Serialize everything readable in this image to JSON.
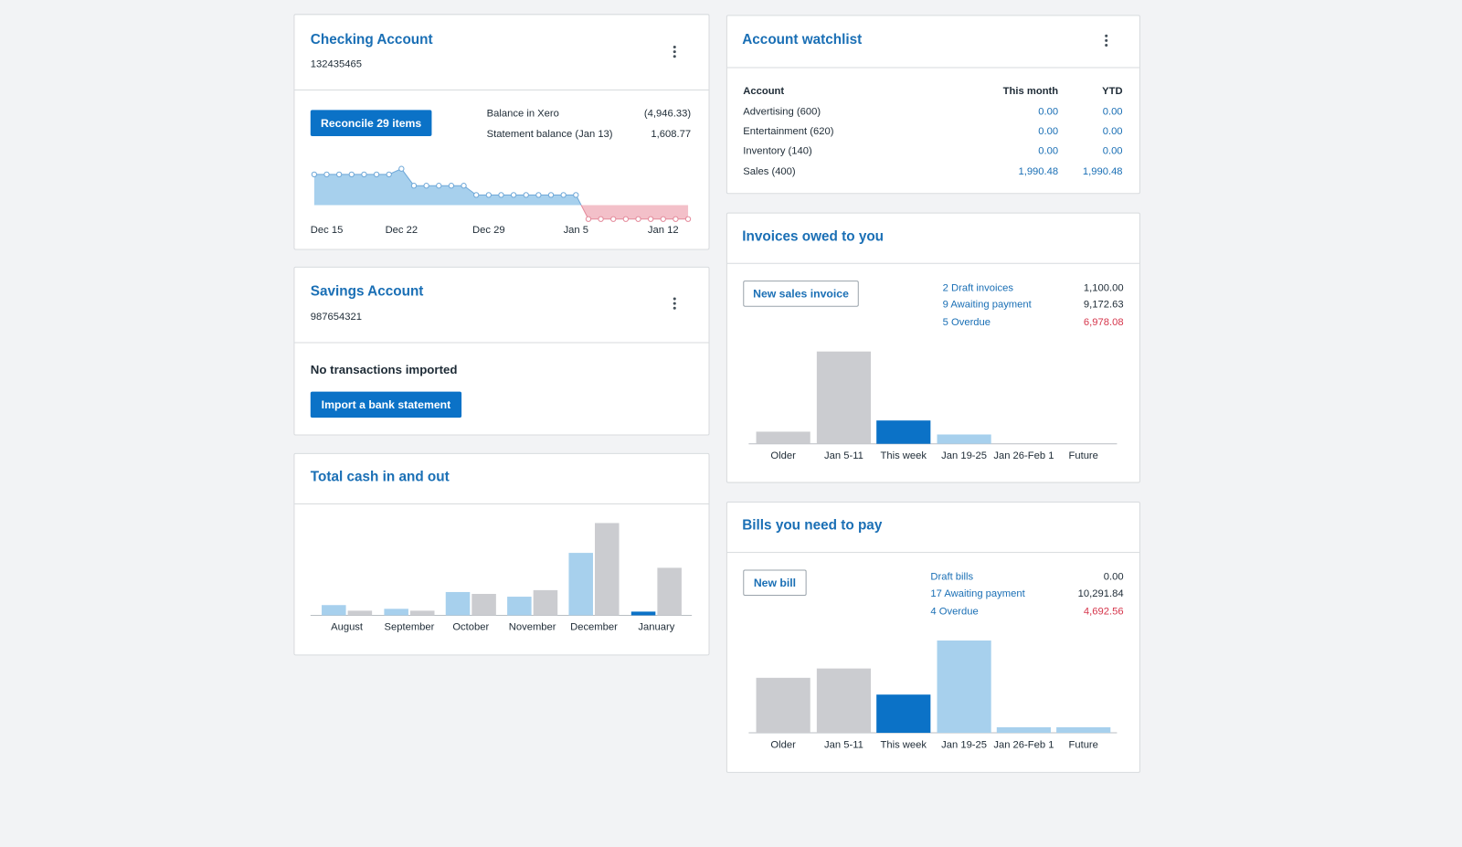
{
  "checking": {
    "title": "Checking Account",
    "account_number": "132435465",
    "button": "Reconcile 29 items",
    "balances": [
      {
        "label": "Balance in Xero",
        "value": "(4,946.33)"
      },
      {
        "label": "Statement balance (Jan 13)",
        "value": "1,608.77"
      }
    ],
    "chart": {
      "type": "area",
      "color": "#a7d0ed",
      "line_color": "#6fa8d8",
      "negative_color": "#f3c0c9",
      "negative_line_color": "#e48a9b",
      "categories": [
        "Dec 15",
        null,
        null,
        null,
        null,
        null,
        null,
        "Dec 22",
        null,
        null,
        null,
        null,
        null,
        null,
        "Dec 29",
        null,
        null,
        null,
        null,
        null,
        null,
        "Jan 5",
        null,
        null,
        null,
        null,
        null,
        null,
        "Jan 12",
        null,
        null
      ],
      "values": [
        10900,
        10900,
        10900,
        10900,
        10900,
        10900,
        10900,
        12900,
        6900,
        6900,
        6900,
        6900,
        6900,
        3600,
        3600,
        3600,
        3600,
        3600,
        3600,
        3600,
        3600,
        3600,
        -4946,
        -4946,
        -4946,
        -4946,
        -4946,
        -4946,
        -4946,
        -4946,
        -4946
      ]
    }
  },
  "savings": {
    "title": "Savings Account",
    "account_number": "987654321",
    "message": "No transactions imported",
    "button": "Import a bank statement"
  },
  "cash": {
    "title": "Total cash in and out",
    "chart": {
      "type": "bar",
      "categories": [
        "August",
        "September",
        "October",
        "November",
        "December",
        "January"
      ],
      "series": [
        {
          "colors": [
            "#a7d0ed",
            "#a7d0ed",
            "#a7d0ed",
            "#a7d0ed",
            "#a7d0ed",
            "#0b72c7"
          ],
          "values": [
            11,
            7,
            25,
            20,
            67,
            4
          ]
        },
        {
          "colors": [
            "#cbccd0",
            "#cbccd0",
            "#cbccd0",
            "#cbccd0",
            "#cbccd0",
            "#cbccd0"
          ],
          "values": [
            5,
            5,
            23,
            27,
            99,
            51
          ]
        }
      ]
    }
  },
  "watchlist": {
    "title": "Account watchlist",
    "table": {
      "header": [
        "Account",
        "This month",
        "YTD"
      ],
      "rows": [
        [
          "Advertising (600)",
          "0.00",
          "0.00"
        ],
        [
          "Entertainment (620)",
          "0.00",
          "0.00"
        ],
        [
          "Inventory (140)",
          "0.00",
          "0.00"
        ],
        [
          "Sales (400)",
          "1,990.48",
          "1,990.48"
        ]
      ]
    }
  },
  "invoices": {
    "title": "Invoices owed to you",
    "button": "New sales invoice",
    "summary": [
      {
        "label": "2 Draft invoices",
        "value": "1,100.00",
        "color": "#1e2b36"
      },
      {
        "label": "9 Awaiting payment",
        "value": "9,172.63",
        "color": "#1e2b36"
      },
      {
        "label": "5 Overdue",
        "value": "6,978.08",
        "color": "#d6364c"
      }
    ],
    "chart": {
      "type": "bar",
      "categories": [
        "Older",
        "Jan 5-11",
        "This week",
        "Jan 19-25",
        "Jan 26-Feb 1",
        "Future"
      ],
      "values": [
        13,
        99,
        25,
        10,
        0,
        0
      ],
      "colors": [
        "#cbccd0",
        "#cbccd0",
        "#0b72c7",
        "#a7d0ed",
        "#a7d0ed",
        "#a7d0ed"
      ]
    }
  },
  "bills": {
    "title": "Bills you need to pay",
    "button": "New bill",
    "summary": [
      {
        "label": "Draft bills",
        "value": "0.00",
        "color": "#1e2b36"
      },
      {
        "label": "17 Awaiting payment",
        "value": "10,291.84",
        "color": "#1e2b36"
      },
      {
        "label": "4 Overdue",
        "value": "4,692.56",
        "color": "#d6364c"
      }
    ],
    "chart": {
      "type": "bar",
      "categories": [
        "Older",
        "Jan 5-11",
        "This week",
        "Jan 19-25",
        "Jan 26-Feb 1",
        "Future"
      ],
      "values": [
        59,
        69,
        41,
        99,
        6,
        6
      ],
      "colors": [
        "#cbccd0",
        "#cbccd0",
        "#0b72c7",
        "#a7d0ed",
        "#a7d0ed",
        "#a7d0ed"
      ]
    }
  }
}
